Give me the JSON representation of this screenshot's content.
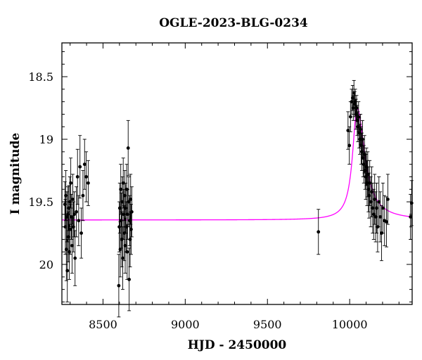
{
  "chart_data": {
    "type": "scatter",
    "title": "OGLE-2023-BLG-0234",
    "xlabel": "HJD - 2450000",
    "ylabel": "I magnitude",
    "xlim": [
      8250,
      10380
    ],
    "ylim": [
      20.32,
      18.23
    ],
    "y_inverted": true,
    "x_ticks": [
      8500,
      9000,
      9500,
      10000
    ],
    "y_ticks": [
      18.5,
      19,
      19.5,
      20
    ],
    "x_tick_labels": [
      "8500",
      "9000",
      "9500",
      "10000"
    ],
    "y_tick_labels": [
      "18.5",
      "19",
      "19.5",
      "20"
    ],
    "grid": false,
    "legend": "none",
    "colors": {
      "data": "#000000",
      "model": "#ff00ff",
      "frame": "#000000"
    },
    "model": {
      "name": "",
      "baseline_mag": 19.645,
      "peak_mag": 18.75,
      "t0": 10045,
      "shape": "rise-and-fall",
      "note_points": [
        [
          8250,
          19.645
        ],
        [
          9500,
          19.62
        ],
        [
          9900,
          19.35
        ],
        [
          10000,
          18.9
        ],
        [
          10045,
          18.75
        ],
        [
          10100,
          19.15
        ],
        [
          10200,
          19.5
        ],
        [
          10380,
          19.63
        ]
      ]
    },
    "series": [
      {
        "name": "",
        "points": [
          {
            "x": 8268,
            "y": 19.52,
            "err": 0.18
          },
          {
            "x": 8271,
            "y": 19.7,
            "err": 0.22
          },
          {
            "x": 8274,
            "y": 19.45,
            "err": 0.2
          },
          {
            "x": 8277,
            "y": 19.88,
            "err": 0.25
          },
          {
            "x": 8280,
            "y": 19.62,
            "err": 0.2
          },
          {
            "x": 8283,
            "y": 20.05,
            "err": 0.25
          },
          {
            "x": 8286,
            "y": 19.6,
            "err": 0.22
          },
          {
            "x": 8289,
            "y": 19.78,
            "err": 0.2
          },
          {
            "x": 8292,
            "y": 19.55,
            "err": 0.18
          },
          {
            "x": 8295,
            "y": 19.9,
            "err": 0.22
          },
          {
            "x": 8298,
            "y": 19.5,
            "err": 0.2
          },
          {
            "x": 8301,
            "y": 19.72,
            "err": 0.2
          },
          {
            "x": 8304,
            "y": 19.35,
            "err": 0.2
          },
          {
            "x": 8308,
            "y": 19.62,
            "err": 0.18
          },
          {
            "x": 8312,
            "y": 19.85,
            "err": 0.22
          },
          {
            "x": 8316,
            "y": 19.48,
            "err": 0.2
          },
          {
            "x": 8320,
            "y": 19.7,
            "err": 0.2
          },
          {
            "x": 8325,
            "y": 19.6,
            "err": 0.18
          },
          {
            "x": 8330,
            "y": 19.95,
            "err": 0.22
          },
          {
            "x": 8338,
            "y": 19.58,
            "err": 0.2
          },
          {
            "x": 8345,
            "y": 19.3,
            "err": 0.22
          },
          {
            "x": 8352,
            "y": 19.65,
            "err": 0.2
          },
          {
            "x": 8360,
            "y": 19.22,
            "err": 0.25
          },
          {
            "x": 8368,
            "y": 19.75,
            "err": 0.2
          },
          {
            "x": 8378,
            "y": 19.45,
            "err": 0.2
          },
          {
            "x": 8388,
            "y": 19.2,
            "err": 0.2
          },
          {
            "x": 8398,
            "y": 19.3,
            "err": 0.2
          },
          {
            "x": 8410,
            "y": 19.35,
            "err": 0.18
          },
          {
            "x": 8596,
            "y": 20.17,
            "err": 0.25
          },
          {
            "x": 8599,
            "y": 19.7,
            "err": 0.2
          },
          {
            "x": 8602,
            "y": 19.55,
            "err": 0.2
          },
          {
            "x": 8605,
            "y": 19.88,
            "err": 0.22
          },
          {
            "x": 8608,
            "y": 19.4,
            "err": 0.2
          },
          {
            "x": 8611,
            "y": 19.65,
            "err": 0.22
          },
          {
            "x": 8614,
            "y": 19.8,
            "err": 0.22
          },
          {
            "x": 8617,
            "y": 19.5,
            "err": 0.2
          },
          {
            "x": 8620,
            "y": 19.95,
            "err": 0.25
          },
          {
            "x": 8623,
            "y": 19.35,
            "err": 0.2
          },
          {
            "x": 8626,
            "y": 19.6,
            "err": 0.2
          },
          {
            "x": 8629,
            "y": 19.75,
            "err": 0.22
          },
          {
            "x": 8632,
            "y": 19.45,
            "err": 0.2
          },
          {
            "x": 8635,
            "y": 19.85,
            "err": 0.22
          },
          {
            "x": 8638,
            "y": 19.55,
            "err": 0.2
          },
          {
            "x": 8641,
            "y": 19.7,
            "err": 0.2
          },
          {
            "x": 8644,
            "y": 19.4,
            "err": 0.2
          },
          {
            "x": 8647,
            "y": 19.9,
            "err": 0.22
          },
          {
            "x": 8650,
            "y": 19.6,
            "err": 0.2
          },
          {
            "x": 8653,
            "y": 19.07,
            "err": 0.22
          },
          {
            "x": 8656,
            "y": 19.5,
            "err": 0.2
          },
          {
            "x": 8659,
            "y": 20.12,
            "err": 0.25
          },
          {
            "x": 8662,
            "y": 19.65,
            "err": 0.2
          },
          {
            "x": 8665,
            "y": 19.8,
            "err": 0.22
          },
          {
            "x": 8668,
            "y": 19.48,
            "err": 0.2
          },
          {
            "x": 8671,
            "y": 19.72,
            "err": 0.2
          },
          {
            "x": 8675,
            "y": 19.58,
            "err": 0.2
          },
          {
            "x": 9810,
            "y": 19.74,
            "err": 0.18
          },
          {
            "x": 9990,
            "y": 18.93,
            "err": 0.15
          },
          {
            "x": 9998,
            "y": 19.05,
            "err": 0.15
          },
          {
            "x": 10005,
            "y": 18.82,
            "err": 0.12
          },
          {
            "x": 10012,
            "y": 18.7,
            "err": 0.1
          },
          {
            "x": 10018,
            "y": 18.67,
            "err": 0.1
          },
          {
            "x": 10022,
            "y": 18.75,
            "err": 0.1
          },
          {
            "x": 10026,
            "y": 18.63,
            "err": 0.1
          },
          {
            "x": 10030,
            "y": 18.72,
            "err": 0.1
          },
          {
            "x": 10034,
            "y": 18.7,
            "err": 0.1
          },
          {
            "x": 10038,
            "y": 18.8,
            "err": 0.12
          },
          {
            "x": 10042,
            "y": 18.75,
            "err": 0.1
          },
          {
            "x": 10046,
            "y": 18.85,
            "err": 0.12
          },
          {
            "x": 10050,
            "y": 18.9,
            "err": 0.12
          },
          {
            "x": 10054,
            "y": 18.82,
            "err": 0.12
          },
          {
            "x": 10058,
            "y": 18.95,
            "err": 0.12
          },
          {
            "x": 10062,
            "y": 19.0,
            "err": 0.12
          },
          {
            "x": 10066,
            "y": 18.92,
            "err": 0.12
          },
          {
            "x": 10070,
            "y": 19.05,
            "err": 0.15
          },
          {
            "x": 10074,
            "y": 19.1,
            "err": 0.15
          },
          {
            "x": 10078,
            "y": 19.0,
            "err": 0.15
          },
          {
            "x": 10082,
            "y": 19.15,
            "err": 0.15
          },
          {
            "x": 10086,
            "y": 19.2,
            "err": 0.15
          },
          {
            "x": 10090,
            "y": 19.12,
            "err": 0.15
          },
          {
            "x": 10094,
            "y": 19.25,
            "err": 0.15
          },
          {
            "x": 10098,
            "y": 19.3,
            "err": 0.18
          },
          {
            "x": 10102,
            "y": 19.22,
            "err": 0.15
          },
          {
            "x": 10106,
            "y": 19.35,
            "err": 0.18
          },
          {
            "x": 10110,
            "y": 19.28,
            "err": 0.18
          },
          {
            "x": 10114,
            "y": 19.4,
            "err": 0.18
          },
          {
            "x": 10118,
            "y": 19.45,
            "err": 0.18
          },
          {
            "x": 10122,
            "y": 19.35,
            "err": 0.18
          },
          {
            "x": 10128,
            "y": 19.5,
            "err": 0.2
          },
          {
            "x": 10134,
            "y": 19.42,
            "err": 0.2
          },
          {
            "x": 10140,
            "y": 19.55,
            "err": 0.2
          },
          {
            "x": 10146,
            "y": 19.6,
            "err": 0.2
          },
          {
            "x": 10152,
            "y": 19.48,
            "err": 0.2
          },
          {
            "x": 10158,
            "y": 19.62,
            "err": 0.2
          },
          {
            "x": 10164,
            "y": 19.55,
            "err": 0.2
          },
          {
            "x": 10170,
            "y": 19.7,
            "err": 0.2
          },
          {
            "x": 10178,
            "y": 19.5,
            "err": 0.2
          },
          {
            "x": 10186,
            "y": 19.62,
            "err": 0.2
          },
          {
            "x": 10194,
            "y": 19.75,
            "err": 0.22
          },
          {
            "x": 10202,
            "y": 19.55,
            "err": 0.2
          },
          {
            "x": 10212,
            "y": 19.65,
            "err": 0.2
          },
          {
            "x": 10224,
            "y": 19.66,
            "err": 0.2
          },
          {
            "x": 10232,
            "y": 19.48,
            "err": 0.2
          },
          {
            "x": 10370,
            "y": 19.62,
            "err": 0.18
          },
          {
            "x": 10377,
            "y": 19.51,
            "err": 0.18
          }
        ]
      }
    ]
  }
}
